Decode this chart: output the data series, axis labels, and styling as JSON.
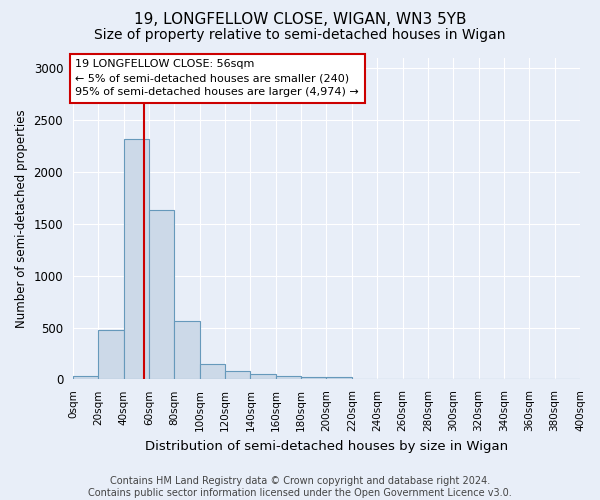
{
  "title1": "19, LONGFELLOW CLOSE, WIGAN, WN3 5YB",
  "title2": "Size of property relative to semi-detached houses in Wigan",
  "xlabel": "Distribution of semi-detached houses by size in Wigan",
  "ylabel": "Number of semi-detached properties",
  "footnote": "Contains HM Land Registry data © Crown copyright and database right 2024.\nContains public sector information licensed under the Open Government Licence v3.0.",
  "bin_edges": [
    0,
    20,
    40,
    60,
    80,
    100,
    120,
    140,
    160,
    180,
    200,
    220,
    240,
    260,
    280,
    300,
    320,
    340,
    360,
    380,
    400
  ],
  "bar_heights": [
    30,
    480,
    2320,
    1630,
    560,
    150,
    80,
    50,
    35,
    20,
    20,
    0,
    0,
    0,
    0,
    0,
    0,
    0,
    0,
    0
  ],
  "bar_color": "#ccd9e8",
  "bar_edge_color": "#6699bb",
  "bar_edge_width": 0.8,
  "property_size": 56,
  "red_line_color": "#cc0000",
  "annotation_line1": "19 LONGFELLOW CLOSE: 56sqm",
  "annotation_line2": "← 5% of semi-detached houses are smaller (240)",
  "annotation_line3": "95% of semi-detached houses are larger (4,974) →",
  "annotation_box_color": "#ffffff",
  "annotation_box_edge": "#cc0000",
  "ylim": [
    0,
    3100
  ],
  "xlim": [
    0,
    400
  ],
  "yticks": [
    0,
    500,
    1000,
    1500,
    2000,
    2500,
    3000
  ],
  "xtick_step": 20,
  "background_color": "#e8eef8",
  "grid_color": "#ffffff",
  "title1_fontsize": 11,
  "title2_fontsize": 10,
  "xlabel_fontsize": 9.5,
  "ylabel_fontsize": 8.5,
  "footnote_fontsize": 7
}
